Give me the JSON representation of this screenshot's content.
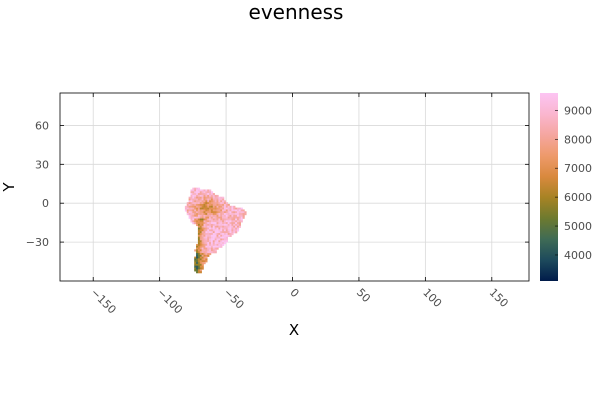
{
  "chart_data": {
    "type": "heatmap",
    "title": "evenness",
    "xlabel": "X",
    "ylabel": "Y",
    "xlim": [
      -175,
      178
    ],
    "ylim": [
      -60,
      85
    ],
    "xticks": [
      -150,
      -100,
      -50,
      0,
      50,
      100,
      150
    ],
    "yticks": [
      -30,
      0,
      30,
      60
    ],
    "xtick_labels": [
      "−150",
      "−100",
      "−50",
      "0",
      "50",
      "100",
      "150"
    ],
    "ytick_labels": [
      "−30",
      "0",
      "30",
      "60"
    ],
    "grid": true,
    "legend": "none",
    "colorbar": {
      "range": [
        3100,
        9600
      ],
      "ticks": [
        4000,
        5000,
        6000,
        7000,
        8000,
        9000
      ],
      "tick_labels": [
        "4000",
        "5000",
        "6000",
        "7000",
        "8000",
        "9000"
      ],
      "colors": [
        "#001b4a",
        "#1d4a5c",
        "#3f6b55",
        "#6d7a2f",
        "#a78324",
        "#d9893e",
        "#ee9a6b",
        "#f5a6a0",
        "#fab6cf",
        "#fcc4f3"
      ]
    },
    "region": {
      "name": "South America",
      "lon_range": [
        -81,
        -35
      ],
      "lat_range": [
        -56,
        12
      ],
      "value_range": [
        3100,
        9600
      ]
    }
  }
}
